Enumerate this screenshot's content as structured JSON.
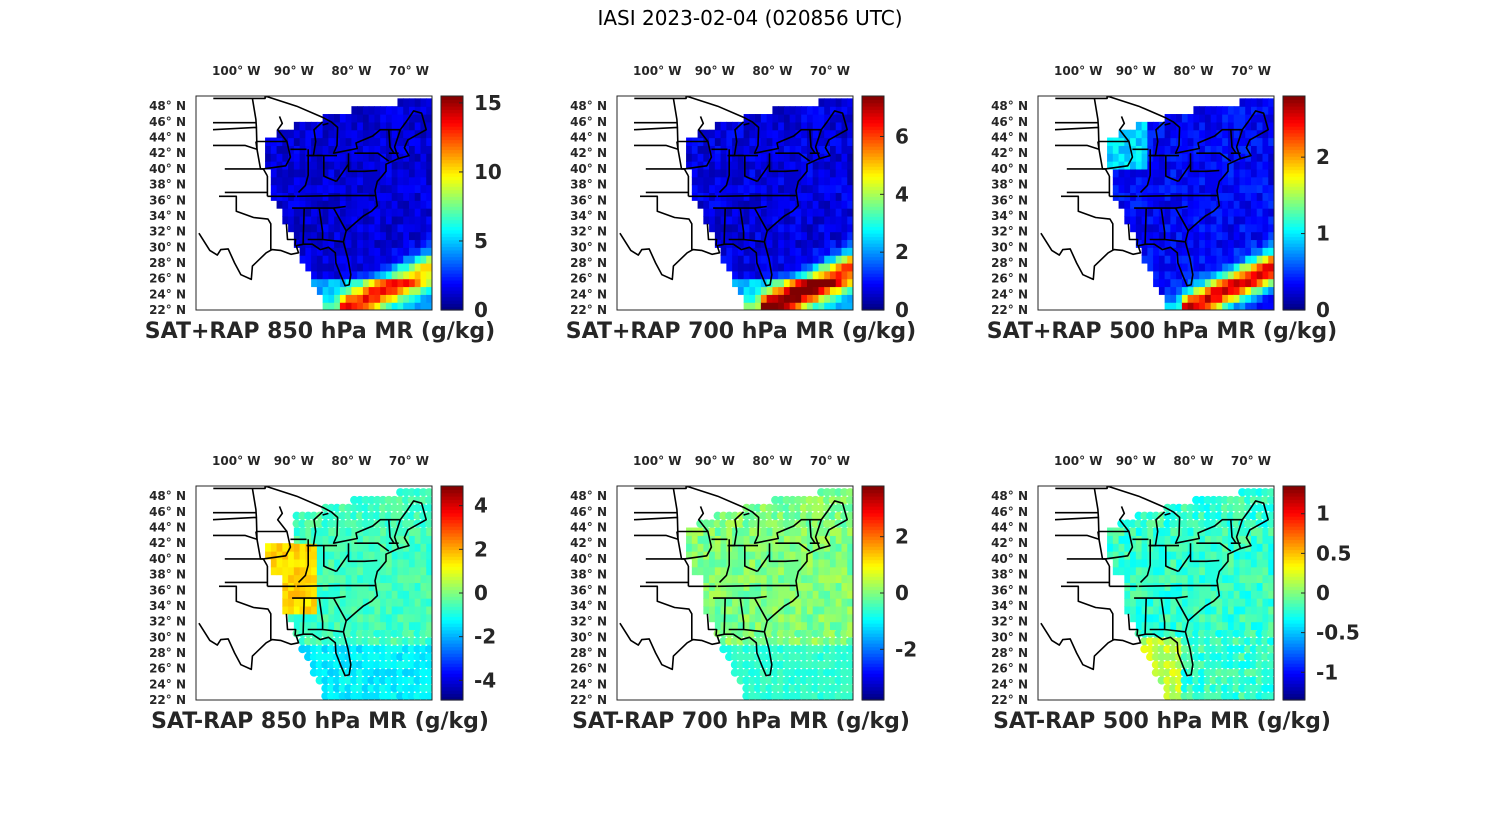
{
  "figure": {
    "title": "IASI 2023-02-04 (020856 UTC)"
  },
  "axes": {
    "lon_ticks": [
      "100° W",
      "90° W",
      "80° W",
      "70° W"
    ],
    "lat_ticks": [
      "48° N",
      "46° N",
      "44° N",
      "42° N",
      "40° N",
      "38° N",
      "36° N",
      "34° N",
      "32° N",
      "30° N",
      "28° N",
      "26° N",
      "24° N",
      "22° N"
    ]
  },
  "colormap": "jet",
  "chart_data": [
    {
      "type": "heatmap",
      "title": "SAT+RAP 850 hPa MR (g/kg)",
      "colorbar": {
        "range": [
          0,
          15.5
        ],
        "ticks": [
          {
            "v": 0,
            "label": "0"
          },
          {
            "v": 5,
            "label": "5"
          },
          {
            "v": 10,
            "label": "10"
          },
          {
            "v": 15,
            "label": "15"
          }
        ]
      }
    },
    {
      "type": "heatmap",
      "title": "SAT+RAP 700 hPa MR (g/kg)",
      "colorbar": {
        "range": [
          0,
          7.4
        ],
        "ticks": [
          {
            "v": 0,
            "label": "0"
          },
          {
            "v": 2,
            "label": "2"
          },
          {
            "v": 4,
            "label": "4"
          },
          {
            "v": 6,
            "label": "6"
          }
        ]
      }
    },
    {
      "type": "heatmap",
      "title": "SAT+RAP 500 hPa MR (g/kg)",
      "colorbar": {
        "range": [
          0,
          2.8
        ],
        "ticks": [
          {
            "v": 0,
            "label": "0"
          },
          {
            "v": 1,
            "label": "1"
          },
          {
            "v": 2,
            "label": "2"
          }
        ]
      }
    },
    {
      "type": "heatmap",
      "title": "SAT-RAP 850 hPa MR (g/kg)",
      "colorbar": {
        "range": [
          -4.9,
          4.9
        ],
        "ticks": [
          {
            "v": -4,
            "label": "-4"
          },
          {
            "v": -2,
            "label": "-2"
          },
          {
            "v": 0,
            "label": "0"
          },
          {
            "v": 2,
            "label": "2"
          },
          {
            "v": 4,
            "label": "4"
          }
        ]
      }
    },
    {
      "type": "heatmap",
      "title": "SAT-RAP 700 hPa MR (g/kg)",
      "colorbar": {
        "range": [
          -3.8,
          3.8
        ],
        "ticks": [
          {
            "v": -2,
            "label": "-2"
          },
          {
            "v": 0,
            "label": "0"
          },
          {
            "v": 2,
            "label": "2"
          }
        ]
      }
    },
    {
      "type": "heatmap",
      "title": "SAT-RAP 500 hPa MR (g/kg)",
      "colorbar": {
        "range": [
          -1.35,
          1.35
        ],
        "ticks": [
          {
            "v": -1,
            "label": "-1"
          },
          {
            "v": -0.5,
            "label": "-0.5"
          },
          {
            "v": 0,
            "label": "0"
          },
          {
            "v": 0.5,
            "label": "0.5"
          },
          {
            "v": 1,
            "label": "1"
          }
        ]
      }
    }
  ]
}
